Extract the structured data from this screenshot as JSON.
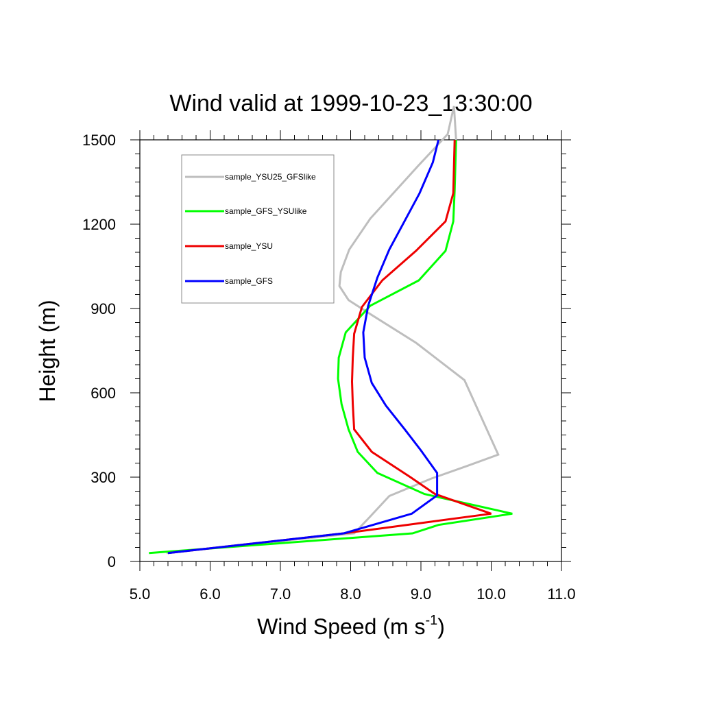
{
  "chart_data": {
    "type": "line",
    "title": "Wind valid at 1999-10-23_13:30:00",
    "xlabel": "Wind Speed (m s",
    "xlabel_sup": "-1",
    "xlabel_end": ")",
    "ylabel": "Height (m)",
    "xlim": [
      5.0,
      11.0
    ],
    "ylim": [
      0,
      1500
    ],
    "xticks": [
      5.0,
      6.0,
      7.0,
      8.0,
      9.0,
      10.0,
      11.0
    ],
    "xtick_labels": [
      "5.0",
      "6.0",
      "7.0",
      "8.0",
      "9.0",
      "10.0",
      "11.0"
    ],
    "yticks": [
      0,
      300,
      600,
      900,
      1200,
      1500
    ],
    "ytick_labels": [
      "0",
      "300",
      "600",
      "900",
      "1200",
      "1500"
    ],
    "grid": false,
    "legend_position": "top-left",
    "series": [
      {
        "name": "sample_YSU25_GFSlike",
        "color": "#bebebe",
        "x": [
          5.38,
          8.05,
          8.26,
          8.55,
          9.15,
          9.66,
          10.1,
          9.62,
          8.93,
          8.28,
          7.97,
          7.84,
          7.86,
          7.98,
          8.28,
          8.97,
          9.38,
          9.47,
          9.5
        ],
        "y": [
          30,
          100,
          155,
          233,
          295,
          340,
          380,
          645,
          778,
          880,
          930,
          980,
          1030,
          1110,
          1220,
          1410,
          1520,
          1620,
          1500
        ]
      },
      {
        "name": "sample_GFS_YSUlike",
        "color": "#00ff00",
        "x": [
          5.13,
          8.88,
          9.25,
          10.3,
          9.05,
          8.38,
          8.1,
          7.97,
          7.87,
          7.82,
          7.83,
          7.93,
          8.28,
          8.97,
          9.35,
          9.46,
          9.48,
          9.5
        ],
        "y": [
          30,
          100,
          130,
          170,
          240,
          315,
          390,
          470,
          560,
          650,
          725,
          815,
          910,
          1000,
          1105,
          1210,
          1320,
          1500
        ]
      },
      {
        "name": "sample_YSU",
        "color": "#ee0000",
        "x": [
          5.4,
          7.9,
          10.0,
          9.2,
          8.85,
          8.3,
          8.05,
          8.03,
          8.02,
          8.03,
          8.05,
          8.16,
          8.45,
          8.93,
          9.35,
          9.46,
          9.48
        ],
        "y": [
          30,
          100,
          170,
          240,
          300,
          390,
          470,
          560,
          640,
          725,
          810,
          905,
          1000,
          1105,
          1210,
          1310,
          1500
        ]
      },
      {
        "name": "sample_GFS",
        "color": "#0000ff",
        "x": [
          5.4,
          7.9,
          8.87,
          9.23,
          9.23,
          9.0,
          8.77,
          8.5,
          8.3,
          8.2,
          8.18,
          8.25,
          8.38,
          8.55,
          8.98,
          9.17,
          9.25
        ],
        "y": [
          30,
          100,
          170,
          235,
          315,
          395,
          470,
          555,
          635,
          725,
          815,
          910,
          1010,
          1110,
          1310,
          1420,
          1500
        ]
      }
    ]
  }
}
